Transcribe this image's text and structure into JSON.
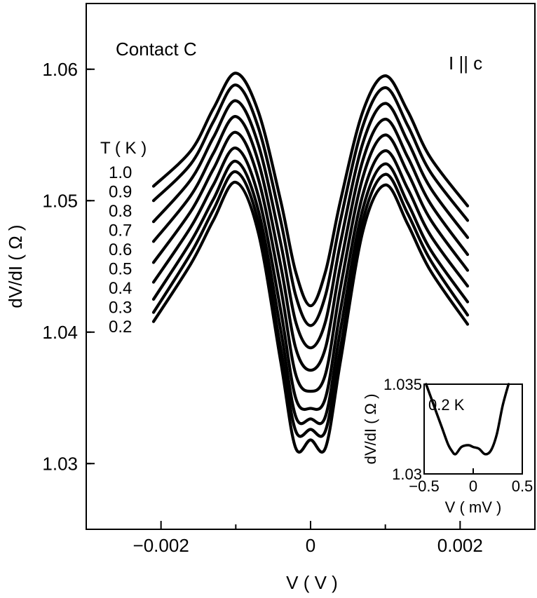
{
  "chart_data": {
    "type": "line",
    "main": {
      "xlabel": "V ( V )",
      "ylabel": "dV/dI ( Ω )",
      "xlim": [
        -0.003,
        0.003
      ],
      "ylim": [
        1.025,
        1.065
      ],
      "x_ticks": [
        -0.002,
        0,
        0.002
      ],
      "x_tick_labels": [
        "−0.002",
        "0",
        "0.002"
      ],
      "y_ticks": [
        1.03,
        1.04,
        1.05,
        1.06
      ],
      "y_tick_labels": [
        "1.03",
        "1.04",
        "1.05",
        "1.06"
      ],
      "annotations": {
        "contact": "Contact C",
        "orientation": "I || c"
      },
      "temperature_header": "T ( K )",
      "series": [
        {
          "name": "1.0",
          "x": [
            -0.0021,
            -0.0016,
            -0.0013,
            -0.001,
            -0.0007,
            -0.0004,
            -0.0002,
            0,
            0.0002,
            0.0004,
            0.0007,
            0.001,
            0.0013,
            0.0016,
            0.0021
          ],
          "values": [
            1.0511,
            1.0538,
            1.057,
            1.0597,
            1.0568,
            1.05,
            1.0446,
            1.042,
            1.0446,
            1.05,
            1.0568,
            1.0595,
            1.0568,
            1.0533,
            1.0496
          ]
        },
        {
          "name": "0.9",
          "x": [
            -0.0021,
            -0.0016,
            -0.0013,
            -0.001,
            -0.0007,
            -0.0004,
            -0.0002,
            0,
            0.0002,
            0.0004,
            0.0007,
            0.001,
            0.0013,
            0.0016,
            0.0021
          ],
          "values": [
            1.05,
            1.0528,
            1.056,
            1.0588,
            1.0556,
            1.0485,
            1.0428,
            1.0405,
            1.0428,
            1.0485,
            1.0557,
            1.0586,
            1.0557,
            1.0522,
            1.0485
          ]
        },
        {
          "name": "0.8",
          "x": [
            -0.0021,
            -0.0016,
            -0.0013,
            -0.001,
            -0.0007,
            -0.0004,
            -0.0002,
            0,
            0.0002,
            0.0004,
            0.0007,
            0.001,
            0.0013,
            0.0016,
            0.0021
          ],
          "values": [
            1.0484,
            1.0516,
            1.0548,
            1.0576,
            1.0543,
            1.0468,
            1.0408,
            1.0388,
            1.0408,
            1.0468,
            1.0544,
            1.0574,
            1.0545,
            1.051,
            1.0472
          ]
        },
        {
          "name": "0.7",
          "x": [
            -0.0021,
            -0.0016,
            -0.0013,
            -0.001,
            -0.0007,
            -0.0004,
            -0.0002,
            0,
            0.0002,
            0.0004,
            0.0007,
            0.001,
            0.0013,
            0.0016,
            0.0021
          ],
          "values": [
            1.0469,
            1.0504,
            1.0536,
            1.0564,
            1.053,
            1.0451,
            1.0388,
            1.0371,
            1.0388,
            1.0451,
            1.0531,
            1.0562,
            1.0533,
            1.0498,
            1.0459
          ]
        },
        {
          "name": "0.6",
          "x": [
            -0.0021,
            -0.0016,
            -0.0013,
            -0.001,
            -0.0007,
            -0.0004,
            -0.0002,
            0,
            0.0002,
            0.0004,
            0.0007,
            0.001,
            0.0013,
            0.0016,
            0.0021
          ],
          "values": [
            1.0453,
            1.0492,
            1.0524,
            1.0552,
            1.0517,
            1.0434,
            1.0368,
            1.0355,
            1.0368,
            1.0434,
            1.0518,
            1.055,
            1.0521,
            1.0486,
            1.0447
          ]
        },
        {
          "name": "0.5",
          "x": [
            -0.0021,
            -0.0016,
            -0.0013,
            -0.001,
            -0.0007,
            -0.0004,
            -0.0002,
            0,
            0.0002,
            0.0004,
            0.0007,
            0.001,
            0.0013,
            0.0016,
            0.0021
          ],
          "values": [
            1.0438,
            1.048,
            1.0512,
            1.054,
            1.0504,
            1.0417,
            1.035,
            1.0342,
            1.035,
            1.0417,
            1.0505,
            1.0538,
            1.0509,
            1.0474,
            1.0435
          ]
        },
        {
          "name": "0.4",
          "x": [
            -0.0021,
            -0.0016,
            -0.0013,
            -0.001,
            -0.0007,
            -0.0004,
            -0.0002,
            0,
            0.0002,
            0.0004,
            0.0007,
            0.001,
            0.0013,
            0.0016,
            0.0021
          ],
          "values": [
            1.0425,
            1.0469,
            1.0501,
            1.053,
            1.0493,
            1.0402,
            1.0336,
            1.0334,
            1.0336,
            1.0402,
            1.0494,
            1.0528,
            1.0498,
            1.0463,
            1.0423
          ]
        },
        {
          "name": "0.3",
          "x": [
            -0.0021,
            -0.0016,
            -0.0013,
            -0.001,
            -0.0007,
            -0.0004,
            -0.0002,
            0,
            0.0002,
            0.0004,
            0.0007,
            0.001,
            0.0013,
            0.0016,
            0.0021
          ],
          "values": [
            1.0415,
            1.046,
            1.0493,
            1.0522,
            1.0484,
            1.0388,
            1.0325,
            1.0326,
            1.0325,
            1.0388,
            1.0485,
            1.052,
            1.049,
            1.0455,
            1.0413
          ]
        },
        {
          "name": "0.2",
          "x": [
            -0.0021,
            -0.0016,
            -0.0013,
            -0.001,
            -0.0007,
            -0.0004,
            -0.0002,
            0,
            0.0002,
            0.0004,
            0.0007,
            0.001,
            0.0013,
            0.0016,
            0.0021
          ],
          "values": [
            1.0408,
            1.0452,
            1.0485,
            1.0514,
            1.0476,
            1.0378,
            1.0312,
            1.0318,
            1.0312,
            1.0378,
            1.0477,
            1.0512,
            1.0482,
            1.0447,
            1.0406
          ]
        }
      ]
    },
    "inset": {
      "type": "line",
      "xlabel": "V ( mV )",
      "ylabel": "dV/dI ( Ω )",
      "xlim": [
        -0.5,
        0.5
      ],
      "ylim": [
        1.03,
        1.035
      ],
      "x_ticks": [
        -0.5,
        0,
        0.5
      ],
      "x_tick_labels": [
        "−0.5",
        "0",
        "0.5"
      ],
      "y_ticks": [
        1.03,
        1.035
      ],
      "y_tick_labels": [
        "1.03",
        "1.035"
      ],
      "annotation": "0.2 K",
      "series": [
        {
          "x": [
            -0.48,
            -0.4,
            -0.32,
            -0.26,
            -0.22,
            -0.18,
            -0.12,
            -0.05,
            0,
            0.06,
            0.12,
            0.18,
            0.24,
            0.3,
            0.36
          ],
          "values": [
            1.035,
            1.0338,
            1.0326,
            1.0317,
            1.0313,
            1.0311,
            1.0315,
            1.0316,
            1.0315,
            1.0314,
            1.0311,
            1.0313,
            1.0322,
            1.0338,
            1.035
          ]
        }
      ]
    }
  }
}
